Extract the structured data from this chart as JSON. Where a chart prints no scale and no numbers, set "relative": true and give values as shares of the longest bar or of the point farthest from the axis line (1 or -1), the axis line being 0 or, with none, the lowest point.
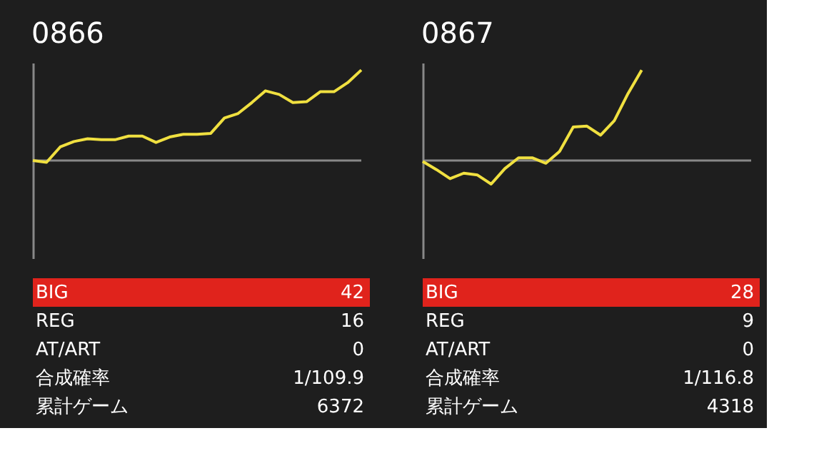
{
  "chart_data": [
    {
      "type": "line",
      "title": "0866",
      "relative": true,
      "color": "#f0e040",
      "categories": [
        null,
        null,
        null,
        null,
        null,
        null,
        null,
        null,
        null,
        null,
        null,
        null,
        null,
        null,
        null,
        null,
        null,
        null,
        null,
        null,
        null,
        null,
        null,
        null,
        null
      ],
      "values": [
        0,
        -0.02,
        0.15,
        0.21,
        0.24,
        0.23,
        0.23,
        0.27,
        0.27,
        0.2,
        0.26,
        0.29,
        0.29,
        0.3,
        0.47,
        0.52,
        0.64,
        0.77,
        0.73,
        0.64,
        0.65,
        0.76,
        0.76,
        0.86,
        1
      ]
    },
    {
      "type": "other",
      "categories": [
        "BIG",
        "REG",
        "AT/ART",
        "合成確率",
        "累計ゲーム"
      ],
      "value_labels": [
        "42",
        "16",
        "0",
        "1/109.9",
        "6372"
      ],
      "colors": [
        "#e0231c",
        "#1e1e1e",
        "#1e1e1e",
        "#1e1e1e",
        "#1e1e1e"
      ]
    },
    {
      "type": "line",
      "title": "0867",
      "relative": true,
      "color": "#f0e040",
      "categories": [
        null,
        null,
        null,
        null,
        null,
        null,
        null,
        null,
        null,
        null,
        null,
        null,
        null,
        null,
        null,
        null,
        null,
        null,
        null,
        null,
        null,
        null,
        null,
        null,
        null
      ],
      "values": [
        -0.01,
        -0.1,
        -0.2,
        -0.14,
        -0.16,
        -0.26,
        -0.09,
        0.03,
        0.03,
        -0.03,
        0.1,
        0.37,
        0.38,
        0.28,
        0.44,
        0.74,
        1,
        null,
        null,
        null,
        null,
        null,
        null,
        null,
        null
      ]
    },
    {
      "type": "other",
      "categories": [
        "BIG",
        "REG",
        "AT/ART",
        "合成確率",
        "累計ゲーム"
      ],
      "value_labels": [
        "28",
        "9",
        "0",
        "1/116.8",
        "4318"
      ],
      "colors": [
        "#e0231c",
        "#1e1e1e",
        "#1e1e1e",
        "#1e1e1e",
        "#1e1e1e"
      ]
    }
  ]
}
